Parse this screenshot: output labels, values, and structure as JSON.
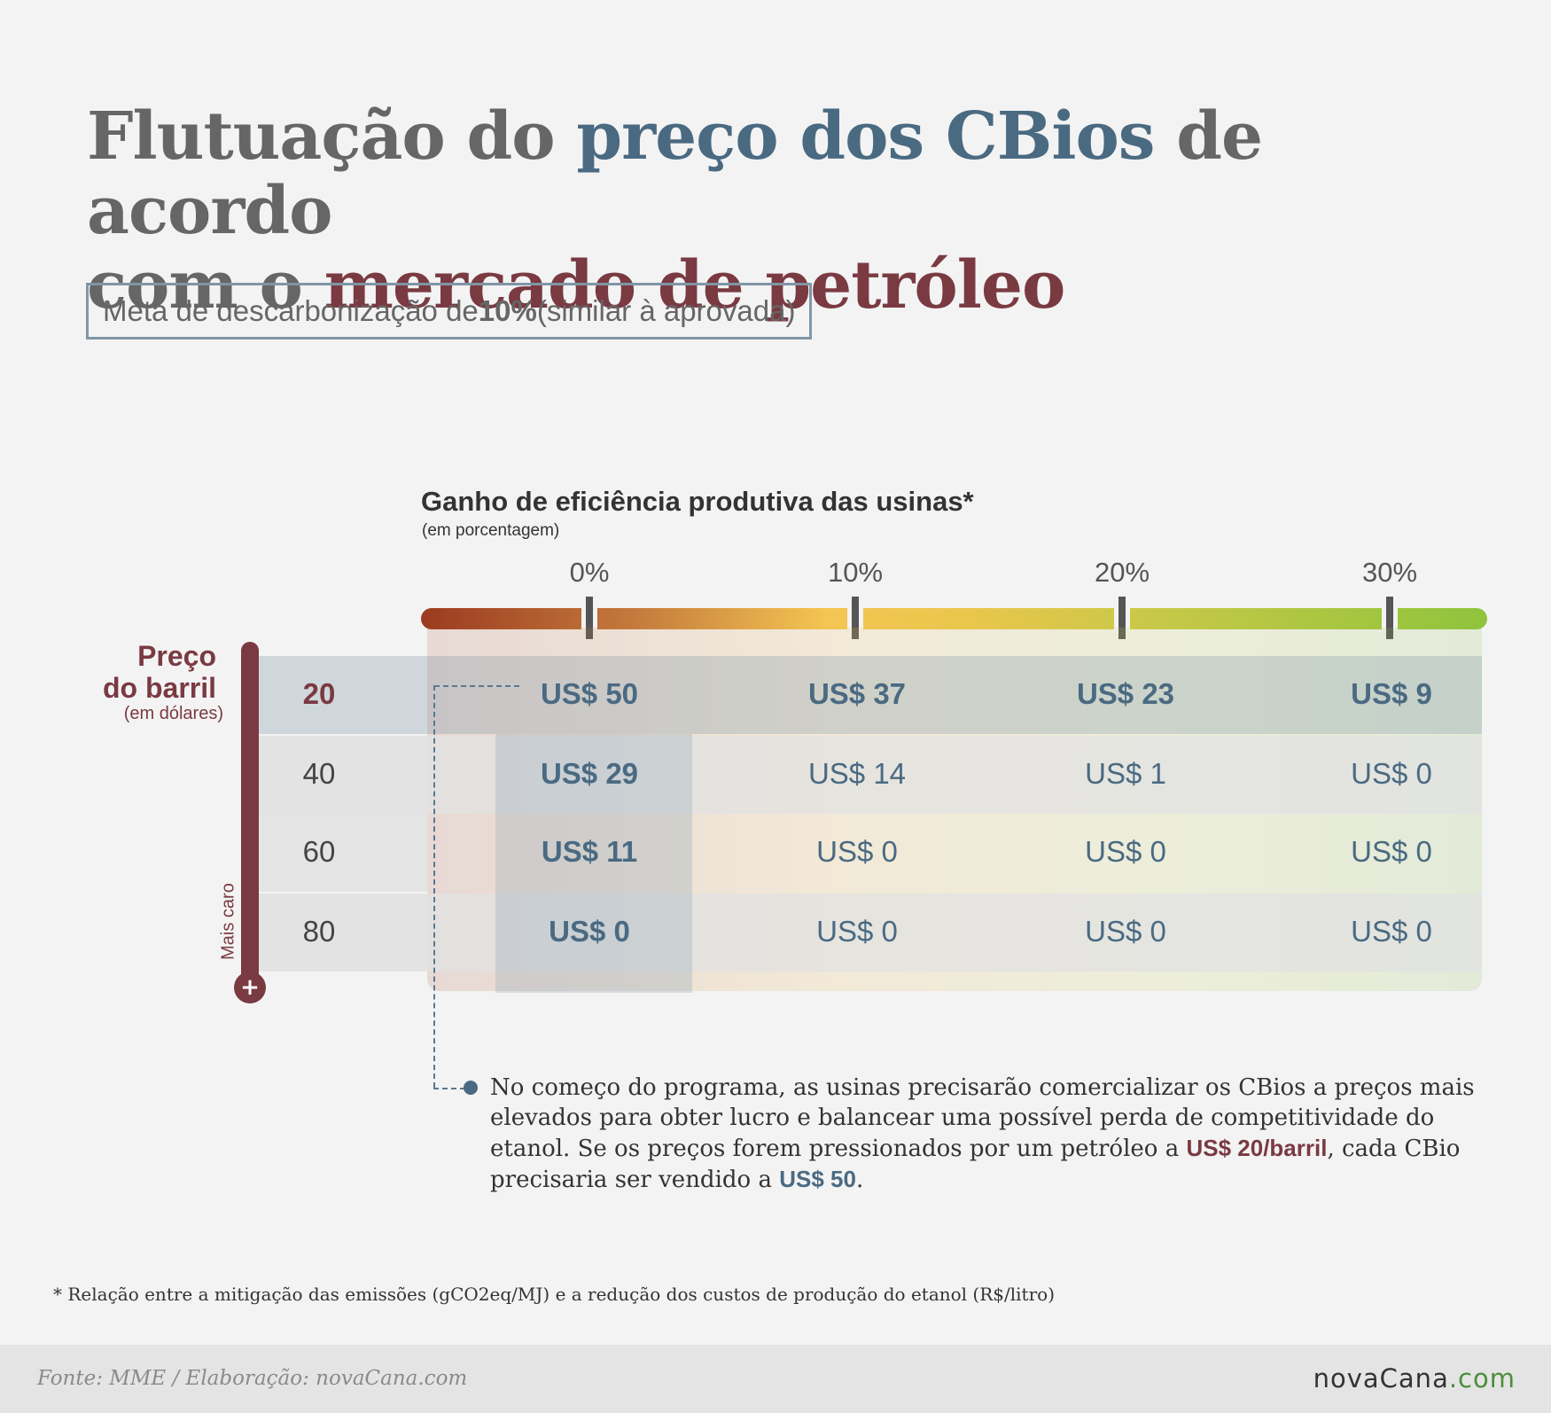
{
  "title": {
    "line1_pre": "Flutuação do ",
    "line1_blue": "preço dos CBios",
    "line1_post": " de acordo",
    "line2_pre": "com o ",
    "line2_red": "mercado de petróleo"
  },
  "meta": {
    "pre": "Meta de descarbonização de ",
    "bold": "10%",
    "post": " (similar à aprovada)"
  },
  "efficiency": {
    "title": "Ganho de eficiência produtiva das usinas*",
    "subtitle": "(em porcentagem)"
  },
  "price_axis": {
    "title_line1": "Preço",
    "title_line2": "do barril",
    "subtitle": "(em dólares)",
    "arrow_label": "Mais caro",
    "bulb_symbol": "+"
  },
  "colors": {
    "blue": "#4a6a82",
    "red": "#7a3a42",
    "gradient_start": "#9b3a20",
    "gradient_mid": "#f4c552",
    "gradient_end": "#8fc43c"
  },
  "chart_data": {
    "type": "table",
    "title": "Flutuação do preço dos CBios de acordo com o mercado de petróleo",
    "xlabel": "Ganho de eficiência produtiva das usinas*",
    "ylabel": "Preço do barril",
    "columns": [
      "0%",
      "10%",
      "20%",
      "30%"
    ],
    "rows": [
      "20",
      "40",
      "60",
      "80"
    ],
    "values": [
      [
        "US$ 50",
        "US$ 37",
        "US$ 23",
        "US$ 9"
      ],
      [
        "US$ 29",
        "US$ 14",
        "US$ 1",
        "US$ 0"
      ],
      [
        "US$ 11",
        "US$ 0",
        "US$ 0",
        "US$ 0"
      ],
      [
        "US$ 0",
        "US$ 0",
        "US$ 0",
        "US$ 0"
      ]
    ],
    "numeric_values": [
      [
        50,
        37,
        23,
        9
      ],
      [
        29,
        14,
        1,
        0
      ],
      [
        11,
        0,
        0,
        0
      ],
      [
        0,
        0,
        0,
        0
      ]
    ]
  },
  "note": {
    "text1": "No começo do programa, as usinas precisarão comercializar os CBios a preços mais elevados para obter lucro e balancear uma possível perda de competitividade do etanol. Se os preços forem pressionados por um petróleo a ",
    "red": "US$ 20/barril",
    "text2": ", cada CBio precisaria ser vendido a ",
    "blue": "US$ 50",
    "text3": "."
  },
  "footnote": "* Relação entre a mitigação das emissões (gCO2eq/MJ) e a redução dos custos de produção do etanol (R$/litro)",
  "footer": {
    "source": "Fonte: MME / Elaboração: novaCana.com",
    "logo_name": "novaCana",
    "logo_domain": ".com"
  }
}
